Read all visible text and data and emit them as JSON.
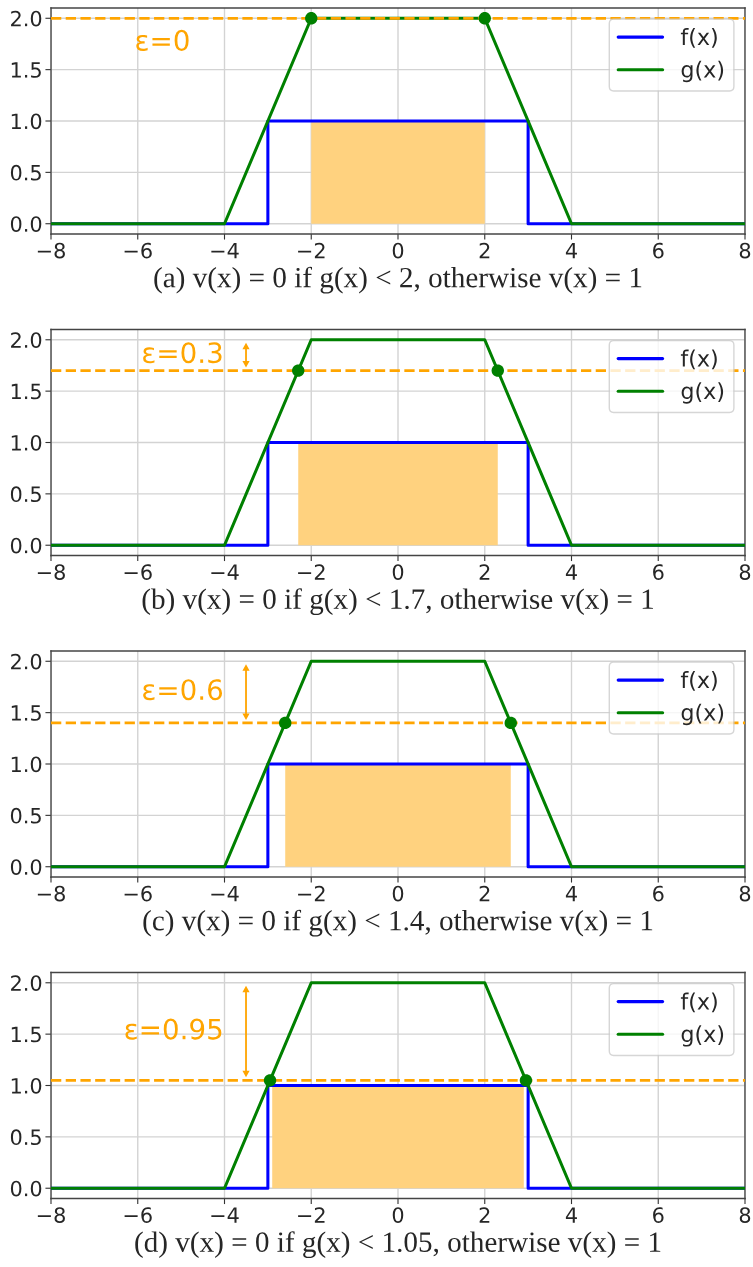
{
  "chart_data": [
    {
      "type": "line",
      "xlabel": "(a) v(x) = 0 if g(x) < 2, otherwise v(x) = 1",
      "series": [
        {
          "type": "area",
          "color": "#ffd27f",
          "x": [
            -2,
            2
          ],
          "values": [
            1,
            1
          ]
        },
        {
          "name": "f(x)",
          "color": "#0000ff",
          "x": [
            -8,
            -3,
            -3,
            3,
            3,
            8
          ],
          "values": [
            0,
            0,
            1,
            1,
            0,
            0
          ]
        },
        {
          "name": "g(x)",
          "color": "#008000",
          "x": [
            -8,
            -4,
            -2,
            2,
            4,
            8
          ],
          "values": [
            0,
            0,
            2,
            2,
            0,
            0
          ]
        },
        {
          "type": "scatter",
          "marker": "circle",
          "color": "#008000",
          "x": [
            -2,
            2
          ],
          "values": [
            2,
            2
          ]
        }
      ],
      "ref_lines": [
        {
          "axis": "y",
          "value": 2,
          "color": "#ffa500",
          "line_style": "dashed"
        }
      ],
      "annotations": [
        "ε=0"
      ],
      "xlim": [
        -8,
        8
      ],
      "ylim": [
        -0.1,
        2.1
      ],
      "xticks": [
        {
          "value": -8,
          "label": "−8"
        },
        {
          "value": -6,
          "label": "−6"
        },
        {
          "value": -4,
          "label": "−4"
        },
        {
          "value": -2,
          "label": "−2"
        },
        0,
        2,
        4,
        6,
        8
      ],
      "yticks": [
        {
          "value": 0,
          "label": "0.0"
        },
        {
          "value": 0.5,
          "label": "0.5"
        },
        {
          "value": 1,
          "label": "1.0"
        },
        {
          "value": 1.5,
          "label": "1.5"
        },
        {
          "value": 2,
          "label": "2.0"
        }
      ],
      "grid": true,
      "legend": "top right"
    },
    {
      "type": "line",
      "xlabel": "(b) v(x) = 0 if g(x) < 1.7, otherwise v(x) = 1",
      "series": [
        {
          "type": "area",
          "color": "#ffd27f",
          "x": [
            -2.3,
            2.3
          ],
          "values": [
            1,
            1
          ]
        },
        {
          "name": "f(x)",
          "color": "#0000ff",
          "x": [
            -8,
            -3,
            -3,
            3,
            3,
            8
          ],
          "values": [
            0,
            0,
            1,
            1,
            0,
            0
          ]
        },
        {
          "name": "g(x)",
          "color": "#008000",
          "x": [
            -8,
            -4,
            -2,
            2,
            4,
            8
          ],
          "values": [
            0,
            0,
            2,
            2,
            0,
            0
          ]
        },
        {
          "type": "scatter",
          "marker": "circle",
          "color": "#008000",
          "x": [
            -2.3,
            2.3
          ],
          "values": [
            1.7,
            1.7
          ]
        }
      ],
      "ref_lines": [
        {
          "axis": "y",
          "value": 1.7,
          "color": "#ffa500",
          "line_style": "dashed"
        }
      ],
      "annotations": [
        "ε=0.3"
      ],
      "xlim": [
        -8,
        8
      ],
      "ylim": [
        -0.1,
        2.1
      ],
      "xticks": [
        {
          "value": -8,
          "label": "−8"
        },
        {
          "value": -6,
          "label": "−6"
        },
        {
          "value": -4,
          "label": "−4"
        },
        {
          "value": -2,
          "label": "−2"
        },
        0,
        2,
        4,
        6,
        8
      ],
      "yticks": [
        {
          "value": 0,
          "label": "0.0"
        },
        {
          "value": 0.5,
          "label": "0.5"
        },
        {
          "value": 1,
          "label": "1.0"
        },
        {
          "value": 1.5,
          "label": "1.5"
        },
        {
          "value": 2,
          "label": "2.0"
        }
      ],
      "grid": true,
      "legend": "top right"
    },
    {
      "type": "line",
      "xlabel": "(c) v(x) = 0 if g(x) < 1.4, otherwise v(x) = 1",
      "series": [
        {
          "type": "area",
          "color": "#ffd27f",
          "x": [
            -2.6,
            2.6
          ],
          "values": [
            1,
            1
          ]
        },
        {
          "name": "f(x)",
          "color": "#0000ff",
          "x": [
            -8,
            -3,
            -3,
            3,
            3,
            8
          ],
          "values": [
            0,
            0,
            1,
            1,
            0,
            0
          ]
        },
        {
          "name": "g(x)",
          "color": "#008000",
          "x": [
            -8,
            -4,
            -2,
            2,
            4,
            8
          ],
          "values": [
            0,
            0,
            2,
            2,
            0,
            0
          ]
        },
        {
          "type": "scatter",
          "marker": "circle",
          "color": "#008000",
          "x": [
            -2.6,
            2.6
          ],
          "values": [
            1.4,
            1.4
          ]
        }
      ],
      "ref_lines": [
        {
          "axis": "y",
          "value": 1.4,
          "color": "#ffa500",
          "line_style": "dashed"
        }
      ],
      "annotations": [
        "ε=0.6"
      ],
      "xlim": [
        -8,
        8
      ],
      "ylim": [
        -0.1,
        2.1
      ],
      "xticks": [
        {
          "value": -8,
          "label": "−8"
        },
        {
          "value": -6,
          "label": "−6"
        },
        {
          "value": -4,
          "label": "−4"
        },
        {
          "value": -2,
          "label": "−2"
        },
        0,
        2,
        4,
        6,
        8
      ],
      "yticks": [
        {
          "value": 0,
          "label": "0.0"
        },
        {
          "value": 0.5,
          "label": "0.5"
        },
        {
          "value": 1,
          "label": "1.0"
        },
        {
          "value": 1.5,
          "label": "1.5"
        },
        {
          "value": 2,
          "label": "2.0"
        }
      ],
      "grid": true,
      "legend": "top right"
    },
    {
      "type": "line",
      "xlabel": "(d) v(x) = 0 if g(x) < 1.05, otherwise v(x) = 1",
      "series": [
        {
          "type": "area",
          "color": "#ffd27f",
          "x": [
            -2.9,
            2.9
          ],
          "values": [
            1,
            1
          ]
        },
        {
          "name": "f(x)",
          "color": "#0000ff",
          "x": [
            -8,
            -3,
            -3,
            3,
            3,
            8
          ],
          "values": [
            0,
            0,
            1,
            1,
            0,
            0
          ]
        },
        {
          "name": "g(x)",
          "color": "#008000",
          "x": [
            -8,
            -4,
            -2,
            2,
            4,
            8
          ],
          "values": [
            0,
            0,
            2,
            2,
            0,
            0
          ]
        },
        {
          "type": "scatter",
          "marker": "circle",
          "color": "#008000",
          "x": [
            -2.95,
            2.95
          ],
          "values": [
            1.05,
            1.05
          ]
        }
      ],
      "ref_lines": [
        {
          "axis": "y",
          "value": 1.05,
          "color": "#ffa500",
          "line_style": "dashed"
        }
      ],
      "annotations": [
        "ε=0.95"
      ],
      "xlim": [
        -8,
        8
      ],
      "ylim": [
        -0.1,
        2.1
      ],
      "xticks": [
        {
          "value": -8,
          "label": "−8"
        },
        {
          "value": -6,
          "label": "−6"
        },
        {
          "value": -4,
          "label": "−4"
        },
        {
          "value": -2,
          "label": "−2"
        },
        0,
        2,
        4,
        6,
        8
      ],
      "yticks": [
        {
          "value": 0,
          "label": "0.0"
        },
        {
          "value": 0.5,
          "label": "0.5"
        },
        {
          "value": 1,
          "label": "1.0"
        },
        {
          "value": 1.5,
          "label": "1.5"
        },
        {
          "value": 2,
          "label": "2.0"
        }
      ],
      "grid": true,
      "legend": "top right"
    }
  ]
}
